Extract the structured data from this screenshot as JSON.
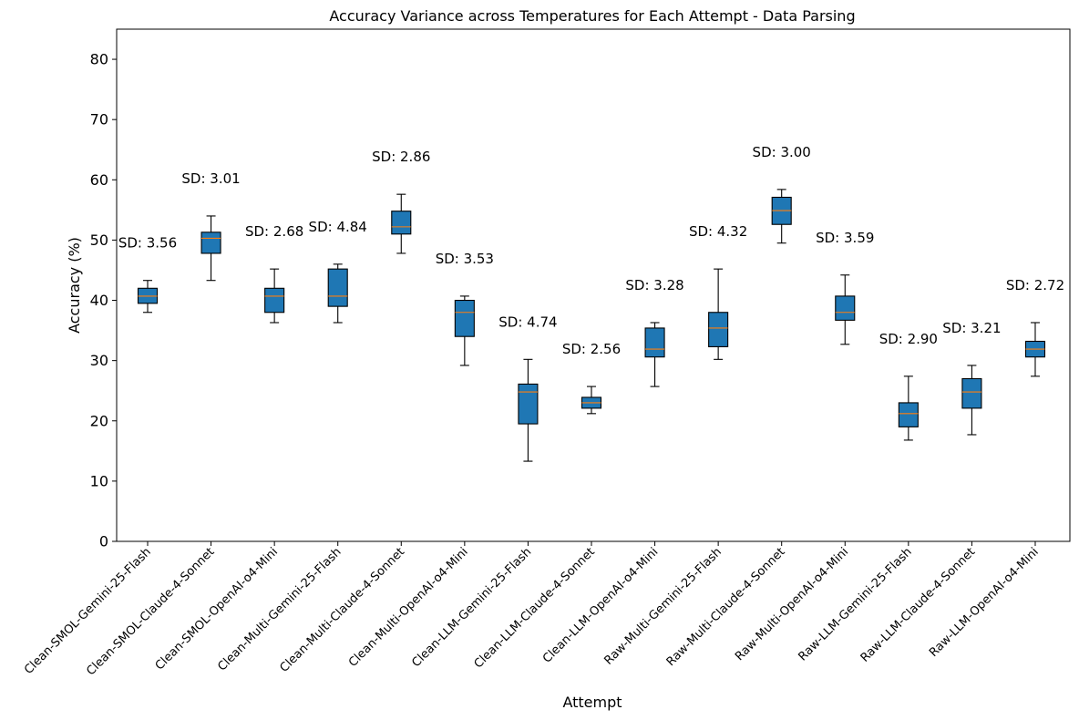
{
  "chart_data": {
    "type": "box",
    "title": "Accuracy Variance across Temperatures for Each Attempt - Data Parsing",
    "xlabel": "Attempt",
    "ylabel": "Accuracy (%)",
    "ylim": [
      0,
      85
    ],
    "yticks": [
      0,
      10,
      20,
      30,
      40,
      50,
      60,
      70,
      80
    ],
    "grid": false,
    "colors": {
      "box_fill": "#1f77b4",
      "median": "#ff7f0e",
      "edge": "#000000"
    },
    "categories": [
      "Clean-SMOL-Gemini-25-Flash",
      "Clean-SMOL-Claude-4-Sonnet",
      "Clean-SMOL-OpenAI-o4-Mini",
      "Clean-Multi-Gemini-25-Flash",
      "Clean-Multi-Claude-4-Sonnet",
      "Clean-Multi-OpenAI-o4-Mini",
      "Clean-LLM-Gemini-25-Flash",
      "Clean-LLM-Claude-4-Sonnet",
      "Clean-LLM-OpenAI-o4-Mini",
      "Raw-Multi-Gemini-25-Flash",
      "Raw-Multi-Claude-4-Sonnet",
      "Raw-Multi-OpenAI-o4-Mini",
      "Raw-LLM-Gemini-25-Flash",
      "Raw-LLM-Claude-4-Sonnet",
      "Raw-LLM-OpenAI-o4-Mini"
    ],
    "boxes": [
      {
        "whisker_low": 38.0,
        "q1": 39.5,
        "median": 40.7,
        "q3": 42.0,
        "whisker_high": 43.3
      },
      {
        "whisker_low": 43.3,
        "q1": 47.8,
        "median": 50.3,
        "q3": 51.3,
        "whisker_high": 54.0
      },
      {
        "whisker_low": 36.3,
        "q1": 38.0,
        "median": 40.7,
        "q3": 42.0,
        "whisker_high": 45.2
      },
      {
        "whisker_low": 36.3,
        "q1": 39.0,
        "median": 40.7,
        "q3": 45.2,
        "whisker_high": 46.0
      },
      {
        "whisker_low": 47.8,
        "q1": 51.0,
        "median": 52.2,
        "q3": 54.8,
        "whisker_high": 57.6
      },
      {
        "whisker_low": 29.2,
        "q1": 34.0,
        "median": 38.0,
        "q3": 40.0,
        "whisker_high": 40.7
      },
      {
        "whisker_low": 13.3,
        "q1": 19.5,
        "median": 24.8,
        "q3": 26.1,
        "whisker_high": 30.2
      },
      {
        "whisker_low": 21.2,
        "q1": 22.1,
        "median": 23.0,
        "q3": 23.9,
        "whisker_high": 25.7
      },
      {
        "whisker_low": 25.7,
        "q1": 30.6,
        "median": 31.9,
        "q3": 35.4,
        "whisker_high": 36.3
      },
      {
        "whisker_low": 30.2,
        "q1": 32.3,
        "median": 35.4,
        "q3": 38.0,
        "whisker_high": 45.2
      },
      {
        "whisker_low": 49.5,
        "q1": 52.6,
        "median": 54.9,
        "q3": 57.1,
        "whisker_high": 58.4
      },
      {
        "whisker_low": 32.7,
        "q1": 36.7,
        "median": 38.0,
        "q3": 40.7,
        "whisker_high": 44.2
      },
      {
        "whisker_low": 16.8,
        "q1": 19.0,
        "median": 21.2,
        "q3": 23.0,
        "whisker_high": 27.4
      },
      {
        "whisker_low": 17.7,
        "q1": 22.1,
        "median": 24.8,
        "q3": 27.0,
        "whisker_high": 29.2
      },
      {
        "whisker_low": 27.4,
        "q1": 30.6,
        "median": 31.9,
        "q3": 33.2,
        "whisker_high": 36.3
      }
    ],
    "annotations": [
      "SD: 3.56",
      "SD: 3.01",
      "SD: 2.68",
      "SD: 4.84",
      "SD: 2.86",
      "SD: 3.53",
      "SD: 4.74",
      "SD: 2.56",
      "SD: 3.28",
      "SD: 4.32",
      "SD: 3.00",
      "SD: 3.59",
      "SD: 2.90",
      "SD: 3.21",
      "SD: 2.72"
    ]
  }
}
